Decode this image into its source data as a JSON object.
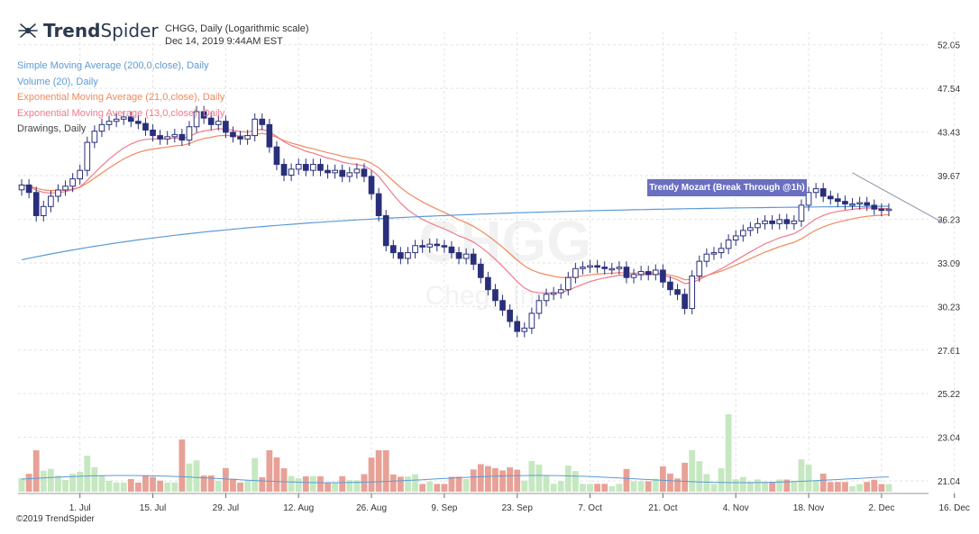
{
  "brand": {
    "name_prefix": "Trend",
    "name_suffix": "Spider",
    "icon": "trendspider-logo-icon"
  },
  "header": {
    "symbol_line": "CHGG, Daily (Logarithmic scale)",
    "date_line": "Dec 14, 2019 9:44AM EST"
  },
  "legend": [
    {
      "label": "Simple Moving Average (200,0,close), Daily",
      "color": "#5b9bd5"
    },
    {
      "label": "Volume (20), Daily",
      "color": "#5b9bd5"
    },
    {
      "label": "Exponential Moving Average (21,0,close), Daily",
      "color": "#f08a5d"
    },
    {
      "label": "Exponential Moving Average (13,0,close), Daily",
      "color": "#ef7a8c"
    },
    {
      "label": "Drawings, Daily",
      "color": "#444444"
    }
  ],
  "watermark": {
    "symbol": "CHGG",
    "company": "Chegg Inc"
  },
  "annotation": {
    "label": "Trendy Mozart (Break Through @1h)"
  },
  "footer": {
    "copyright": "©2019 TrendSpider"
  },
  "colors": {
    "up": "#2a2f7a",
    "down": "#2a2f7a",
    "vol_up": "#c5e8c0",
    "vol_down": "#e8a196",
    "sma": "#5b9bd5",
    "ema21": "#f08a5d",
    "ema13": "#ef7a8c",
    "trendline": "#9aa0b5",
    "grid": "#e3e3e3"
  },
  "chart_data": {
    "type": "candlestick",
    "title": "CHGG, Daily (Logarithmic scale)",
    "scale": "logarithmic",
    "y_ticks": [
      "52.05",
      "47.54",
      "43.43",
      "39.67",
      "36.23",
      "33.09",
      "30.23",
      "27.61",
      "25.22",
      "23.04",
      "21.04"
    ],
    "ylim": [
      20.5,
      53.5
    ],
    "x_ticks": [
      "1. Jul",
      "15. Jul",
      "29. Jul",
      "12. Aug",
      "26. Aug",
      "9. Sep",
      "23. Sep",
      "7. Oct",
      "21. Oct",
      "4. Nov",
      "18. Nov",
      "2. Dec",
      "16. Dec"
    ],
    "x_tick_bar_index": [
      8,
      18,
      28,
      38,
      48,
      58,
      68,
      78,
      88,
      98,
      108,
      118,
      128
    ],
    "series": [
      {
        "name": "CHGG",
        "close": [
          38.9,
          38.3,
          36.5,
          37.2,
          38.0,
          38.5,
          38.8,
          39.4,
          40.1,
          42.5,
          43.5,
          44.1,
          44.4,
          44.6,
          44.8,
          44.4,
          44.2,
          43.6,
          43.1,
          42.8,
          43.0,
          43.2,
          42.7,
          43.9,
          45.3,
          44.7,
          44.1,
          44.4,
          43.4,
          43.0,
          42.8,
          43.1,
          44.6,
          44.1,
          42.1,
          40.6,
          39.7,
          40.2,
          40.6,
          40.1,
          40.6,
          40.1,
          39.9,
          40.1,
          39.6,
          39.9,
          40.2,
          39.6,
          38.2,
          36.5,
          34.3,
          33.8,
          33.4,
          33.8,
          34.3,
          34.2,
          34.4,
          34.3,
          34.2,
          33.8,
          33.4,
          33.7,
          33.0,
          32.1,
          31.3,
          30.6,
          30.0,
          29.3,
          28.7,
          28.9,
          29.8,
          30.6,
          31.0,
          31.1,
          31.3,
          32.1,
          32.7,
          32.8,
          32.9,
          32.8,
          32.7,
          32.7,
          32.8,
          32.1,
          32.3,
          32.5,
          32.3,
          32.6,
          31.8,
          31.3,
          31.0,
          30.1,
          32.2,
          33.2,
          33.7,
          33.8,
          34.1,
          34.7,
          35.0,
          35.4,
          35.6,
          35.9,
          36.1,
          35.9,
          36.2,
          35.9,
          36.1,
          37.3,
          38.3,
          38.6,
          38.0,
          37.8,
          37.6,
          37.4,
          37.4,
          37.5,
          37.3,
          37.0,
          36.9,
          37.0
        ]
      }
    ]
  }
}
